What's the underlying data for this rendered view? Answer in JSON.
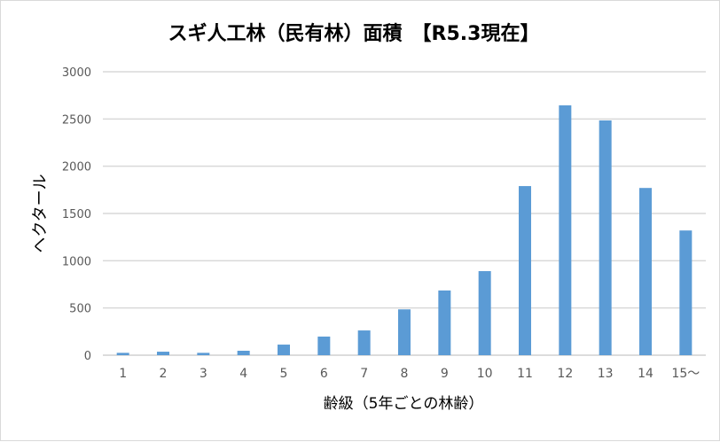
{
  "chart_data": {
    "type": "bar",
    "title": "スギ人工林（民有林）面積　【R5.3現在】",
    "xlabel": "齢級（5年ごとの林齢）",
    "ylabel": "ヘクタール",
    "categories": [
      "1",
      "2",
      "3",
      "4",
      "5",
      "6",
      "7",
      "8",
      "9",
      "10",
      "11",
      "12",
      "13",
      "14",
      "15～"
    ],
    "values": [
      25,
      37,
      25,
      47,
      112,
      197,
      262,
      485,
      685,
      890,
      1790,
      2645,
      2485,
      1770,
      1320
    ],
    "ylim": [
      0,
      3000
    ],
    "yticks": [
      "0",
      "500",
      "1000",
      "1500",
      "2000",
      "2500",
      "3000"
    ],
    "grid": true,
    "legend": "none",
    "bar_color": "#5b9bd5"
  }
}
